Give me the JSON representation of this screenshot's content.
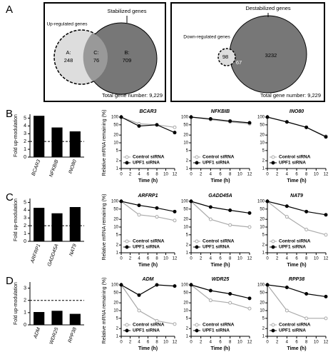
{
  "panel_labels": [
    "A",
    "B",
    "C",
    "D"
  ],
  "venn": [
    {
      "left_label": "Up-regulated genes",
      "right_label": "Stabilized genes",
      "a_label": "A:",
      "a_value": "248",
      "c_label": "C:",
      "c_value": "76",
      "b_label": "B:",
      "b_value": "709",
      "total": "Total gene number: 9,229"
    },
    {
      "top_label": "Destabilized genes",
      "left_label": "Down-regulated genes",
      "left_value": "98",
      "overlap_value": "67",
      "right_value": "3232",
      "total": "Total gene number: 9,229"
    }
  ],
  "chart_data": [
    {
      "type": "bar",
      "ylabel": "Fold up-modulation",
      "categories": [
        "BCAR3",
        "NFKBIB",
        "INO80"
      ],
      "values": [
        5.3,
        3.8,
        3.3
      ],
      "color": "#000000",
      "ylim": [
        0,
        5.5
      ],
      "yticks": [
        0,
        1,
        2,
        3,
        4,
        5
      ],
      "threshold": 2
    },
    {
      "type": "line",
      "title": "BCAR3",
      "ylabel": "Relative mRNA remaining (%)",
      "xlabel": "Time (h)",
      "x": [
        0,
        4,
        8,
        12
      ],
      "series": [
        {
          "name": "Control siRNA",
          "color": "#aaaaaa",
          "values": [
            100,
            55,
            50,
            40
          ]
        },
        {
          "name": "UPF1 siRNA",
          "color": "#000000",
          "values": [
            100,
            45,
            50,
            25
          ]
        }
      ],
      "xlim": [
        0,
        12
      ],
      "ylim": [
        1,
        100
      ],
      "xticks": [
        0,
        2,
        4,
        6,
        8,
        10,
        12
      ],
      "yticks": [
        1,
        2,
        5,
        10,
        20,
        50,
        100
      ],
      "log_y": true
    },
    {
      "type": "line",
      "title": "NFKBIB",
      "xlabel": "Time (h)",
      "x": [
        0,
        4,
        8,
        12
      ],
      "series": [
        {
          "name": "Control siRNA",
          "color": "#aaaaaa",
          "values": [
            100,
            80,
            65,
            55
          ]
        },
        {
          "name": "UPF1 siRNA",
          "color": "#000000",
          "values": [
            100,
            85,
            70,
            60
          ]
        }
      ],
      "xlim": [
        0,
        12
      ],
      "ylim": [
        1,
        100
      ],
      "xticks": [
        0,
        2,
        4,
        6,
        8,
        10,
        12
      ],
      "yticks": [
        1,
        2,
        5,
        10,
        20,
        50,
        100
      ],
      "log_y": true
    },
    {
      "type": "line",
      "title": "INO80",
      "xlabel": "Time (h)",
      "x": [
        0,
        4,
        8,
        12
      ],
      "series": [
        {
          "name": "Control siRNA",
          "color": "#aaaaaa",
          "values": [
            100,
            65,
            40,
            18
          ]
        },
        {
          "name": "UPF1 siRNA",
          "color": "#000000",
          "values": [
            100,
            65,
            40,
            17
          ]
        }
      ],
      "xlim": [
        0,
        12
      ],
      "ylim": [
        1,
        100
      ],
      "xticks": [
        0,
        2,
        4,
        6,
        8,
        10,
        12
      ],
      "yticks": [
        1,
        2,
        5,
        10,
        20,
        50,
        100
      ],
      "log_y": true
    },
    {
      "type": "bar",
      "ylabel": "Fold up-modulation",
      "categories": [
        "ARFRP1",
        "GADD45A",
        "NAT9"
      ],
      "values": [
        4.3,
        3.6,
        4.4
      ],
      "color": "#000000",
      "ylim": [
        0,
        5.5
      ],
      "yticks": [
        0,
        1,
        2,
        3,
        4,
        5
      ],
      "threshold": 2
    },
    {
      "type": "line",
      "title": "ARFRP1",
      "ylabel": "Relative mRNA remaining (%)",
      "xlabel": "Time (h)",
      "x": [
        0,
        4,
        8,
        12
      ],
      "series": [
        {
          "name": "Control siRNA",
          "color": "#aaaaaa",
          "values": [
            100,
            30,
            25,
            18
          ]
        },
        {
          "name": "UPF1 siRNA",
          "color": "#000000",
          "values": [
            100,
            70,
            55,
            40
          ]
        }
      ],
      "xlim": [
        0,
        12
      ],
      "ylim": [
        1,
        100
      ],
      "xticks": [
        0,
        2,
        4,
        6,
        8,
        10,
        12
      ],
      "yticks": [
        1,
        2,
        5,
        10,
        20,
        50,
        100
      ],
      "log_y": true
    },
    {
      "type": "line",
      "title": "GADD45A",
      "xlabel": "Time (h)",
      "x": [
        0,
        4,
        8,
        12
      ],
      "series": [
        {
          "name": "Control siRNA",
          "color": "#aaaaaa",
          "values": [
            100,
            20,
            12,
            10
          ]
        },
        {
          "name": "UPF1 siRNA",
          "color": "#000000",
          "values": [
            100,
            60,
            45,
            35
          ]
        }
      ],
      "xlim": [
        0,
        12
      ],
      "ylim": [
        1,
        100
      ],
      "xticks": [
        0,
        2,
        4,
        6,
        8,
        10,
        12
      ],
      "yticks": [
        1,
        2,
        5,
        10,
        20,
        50,
        100
      ],
      "log_y": true
    },
    {
      "type": "line",
      "title": "NAT9",
      "xlabel": "Time (h)",
      "x": [
        0,
        4,
        8,
        12
      ],
      "series": [
        {
          "name": "Control siRNA",
          "color": "#aaaaaa",
          "values": [
            100,
            25,
            8,
            5
          ]
        },
        {
          "name": "UPF1 siRNA",
          "color": "#000000",
          "values": [
            100,
            65,
            40,
            30
          ]
        }
      ],
      "xlim": [
        0,
        12
      ],
      "ylim": [
        1,
        100
      ],
      "xticks": [
        0,
        2,
        4,
        6,
        8,
        10,
        12
      ],
      "yticks": [
        1,
        2,
        5,
        10,
        20,
        50,
        100
      ],
      "log_y": true
    },
    {
      "type": "bar",
      "ylabel": "Fold up-modulation",
      "categories": [
        "ADM",
        "WDR25",
        "RPP38"
      ],
      "values": [
        1.05,
        1.15,
        0.9
      ],
      "color": "#000000",
      "ylim": [
        0,
        3.5
      ],
      "yticks": [
        0,
        1,
        2,
        3
      ],
      "threshold": 2
    },
    {
      "type": "line",
      "title": "ADM",
      "ylabel": "Relative mRNA remaining (%)",
      "xlabel": "Time (h)",
      "x": [
        0,
        4,
        8,
        12
      ],
      "series": [
        {
          "name": "Control siRNA",
          "color": "#aaaaaa",
          "values": [
            100,
            10,
            4,
            3
          ]
        },
        {
          "name": "UPF1 siRNA",
          "color": "#000000",
          "values": [
            100,
            40,
            100,
            90
          ]
        }
      ],
      "xlim": [
        0,
        12
      ],
      "ylim": [
        1,
        100
      ],
      "xticks": [
        0,
        2,
        4,
        6,
        8,
        10,
        12
      ],
      "yticks": [
        1,
        2,
        5,
        10,
        20,
        50,
        100
      ],
      "log_y": true
    },
    {
      "type": "line",
      "title": "WDR25",
      "xlabel": "Time (h)",
      "x": [
        0,
        4,
        8,
        12
      ],
      "series": [
        {
          "name": "Control siRNA",
          "color": "#aaaaaa",
          "values": [
            100,
            25,
            20,
            12
          ]
        },
        {
          "name": "UPF1 siRNA",
          "color": "#000000",
          "values": [
            100,
            60,
            45,
            30
          ]
        }
      ],
      "xlim": [
        0,
        12
      ],
      "ylim": [
        1,
        100
      ],
      "xticks": [
        0,
        2,
        4,
        6,
        8,
        10,
        12
      ],
      "yticks": [
        1,
        2,
        5,
        10,
        20,
        50,
        100
      ],
      "log_y": true
    },
    {
      "type": "line",
      "title": "RPP38",
      "xlabel": "Time (h)",
      "x": [
        0,
        4,
        8,
        12
      ],
      "series": [
        {
          "name": "Control siRNA",
          "color": "#aaaaaa",
          "values": [
            100,
            10,
            5,
            5
          ]
        },
        {
          "name": "UPF1 siRNA",
          "color": "#000000",
          "values": [
            100,
            80,
            45,
            35
          ]
        }
      ],
      "xlim": [
        0,
        12
      ],
      "ylim": [
        1,
        100
      ],
      "xticks": [
        0,
        2,
        4,
        6,
        8,
        10,
        12
      ],
      "yticks": [
        1,
        2,
        5,
        10,
        20,
        50,
        100
      ],
      "log_y": true
    }
  ]
}
